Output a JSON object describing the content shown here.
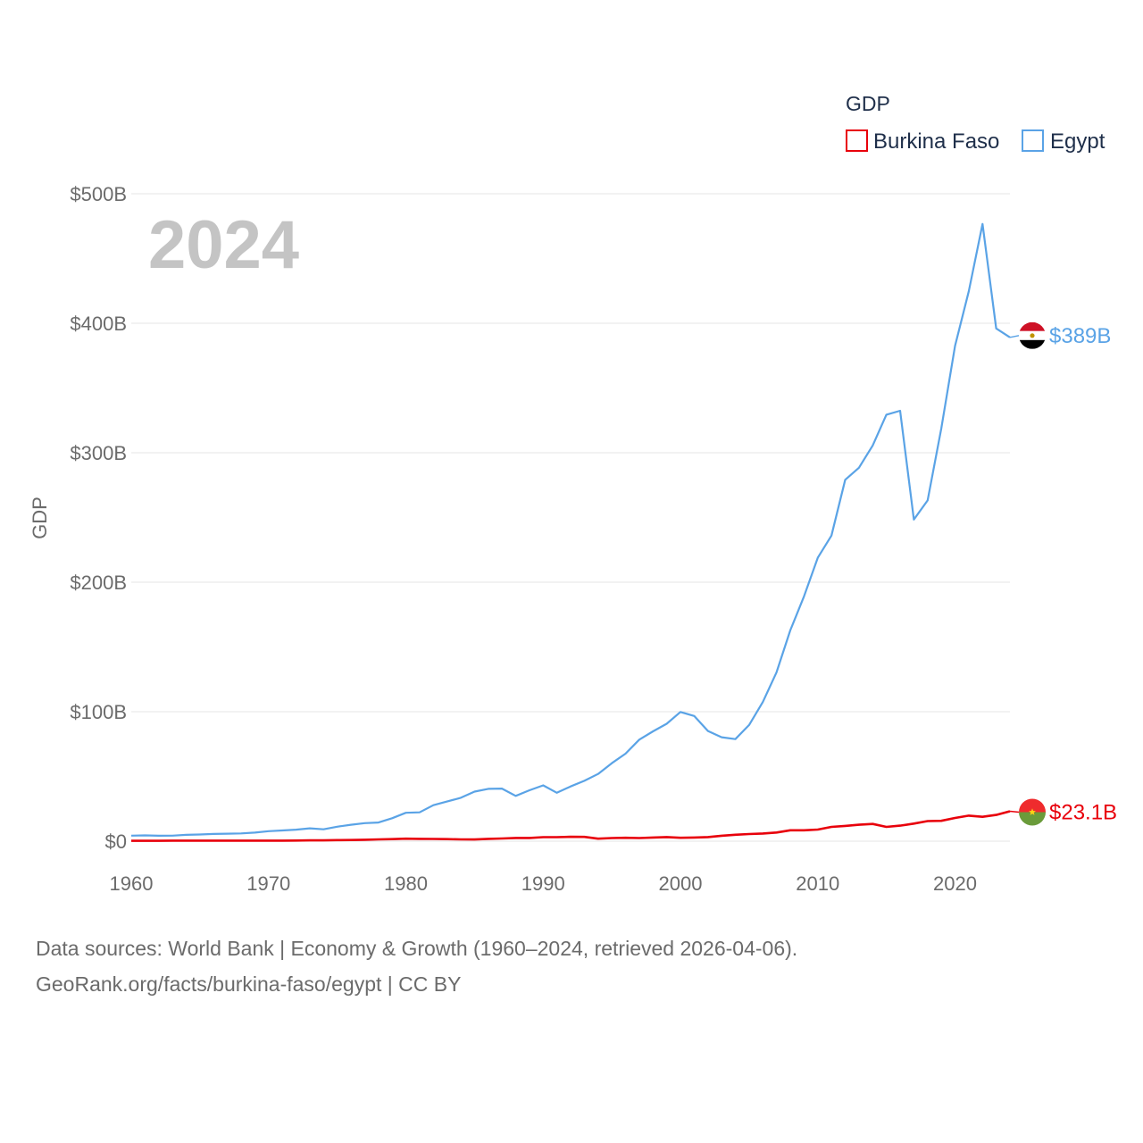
{
  "chart_data": {
    "type": "line",
    "title": "GDP",
    "ylabel": "GDP",
    "xlabel": "",
    "year_label": "2024",
    "x_range": [
      1960,
      2024
    ],
    "ylim": [
      0,
      500
    ],
    "y_ticks": [
      0,
      100,
      200,
      300,
      400,
      500
    ],
    "y_tick_labels": [
      "$0",
      "$100B",
      "$200B",
      "$300B",
      "$400B",
      "$500B"
    ],
    "x_ticks": [
      1960,
      1970,
      1980,
      1990,
      2000,
      2010,
      2020
    ],
    "x_tick_labels": [
      "1960",
      "1970",
      "1980",
      "1990",
      "2000",
      "2010",
      "2020"
    ],
    "legend_placement": "top-right",
    "x": [
      1960,
      1961,
      1962,
      1963,
      1964,
      1965,
      1966,
      1967,
      1968,
      1969,
      1970,
      1971,
      1972,
      1973,
      1974,
      1975,
      1976,
      1977,
      1978,
      1979,
      1980,
      1981,
      1982,
      1983,
      1984,
      1985,
      1986,
      1987,
      1988,
      1989,
      1990,
      1991,
      1992,
      1993,
      1994,
      1995,
      1996,
      1997,
      1998,
      1999,
      2000,
      2001,
      2002,
      2003,
      2004,
      2005,
      2006,
      2007,
      2008,
      2009,
      2010,
      2011,
      2012,
      2013,
      2014,
      2015,
      2016,
      2017,
      2018,
      2019,
      2020,
      2021,
      2022,
      2023,
      2024
    ],
    "series": [
      {
        "name": "Burkina Faso",
        "color": "#e8000b",
        "end_label": "$23.1B",
        "flag": "burkina-faso-flag",
        "values": [
          0.3,
          0.3,
          0.3,
          0.4,
          0.4,
          0.4,
          0.4,
          0.4,
          0.4,
          0.4,
          0.4,
          0.4,
          0.5,
          0.6,
          0.6,
          0.8,
          0.9,
          1.1,
          1.4,
          1.6,
          1.9,
          1.8,
          1.7,
          1.6,
          1.4,
          1.3,
          1.8,
          2.1,
          2.5,
          2.5,
          3.1,
          3.1,
          3.4,
          3.3,
          1.9,
          2.4,
          2.6,
          2.4,
          2.8,
          3.2,
          2.6,
          2.8,
          3.2,
          4.2,
          5.0,
          5.5,
          5.9,
          6.7,
          8.4,
          8.4,
          9.0,
          11.0,
          11.8,
          12.7,
          13.3,
          11.0,
          12.0,
          13.6,
          15.5,
          15.7,
          17.9,
          19.7,
          18.8,
          20.3,
          23.1
        ]
      },
      {
        "name": "Egypt",
        "color": "#5aa3e6",
        "end_label": "$389B",
        "flag": "egypt-flag",
        "values": [
          4.3,
          4.5,
          4.2,
          4.3,
          4.9,
          5.2,
          5.6,
          5.8,
          6.0,
          6.6,
          7.7,
          8.3,
          8.9,
          9.9,
          9.2,
          11.2,
          12.7,
          13.9,
          14.4,
          17.7,
          21.9,
          22.3,
          27.8,
          30.6,
          33.5,
          38.3,
          40.4,
          40.6,
          35.0,
          39.3,
          43.1,
          37.4,
          42.3,
          46.6,
          51.9,
          60.2,
          67.6,
          78.4,
          84.8,
          90.7,
          99.8,
          96.7,
          85.1,
          80.3,
          78.8,
          89.7,
          107.5,
          130.4,
          162.8,
          189.1,
          218.9,
          236.0,
          279.1,
          288.4,
          305.6,
          329.4,
          332.4,
          248.4,
          263.2,
          318.7,
          382.5,
          424.7,
          476.7,
          396.0,
          389.1
        ]
      }
    ]
  },
  "footer": {
    "line1": "Data sources: World Bank | Economy & Growth (1960–2024, retrieved 2026-04-06).",
    "line2": "GeoRank.org/facts/burkina-faso/egypt | CC BY"
  }
}
